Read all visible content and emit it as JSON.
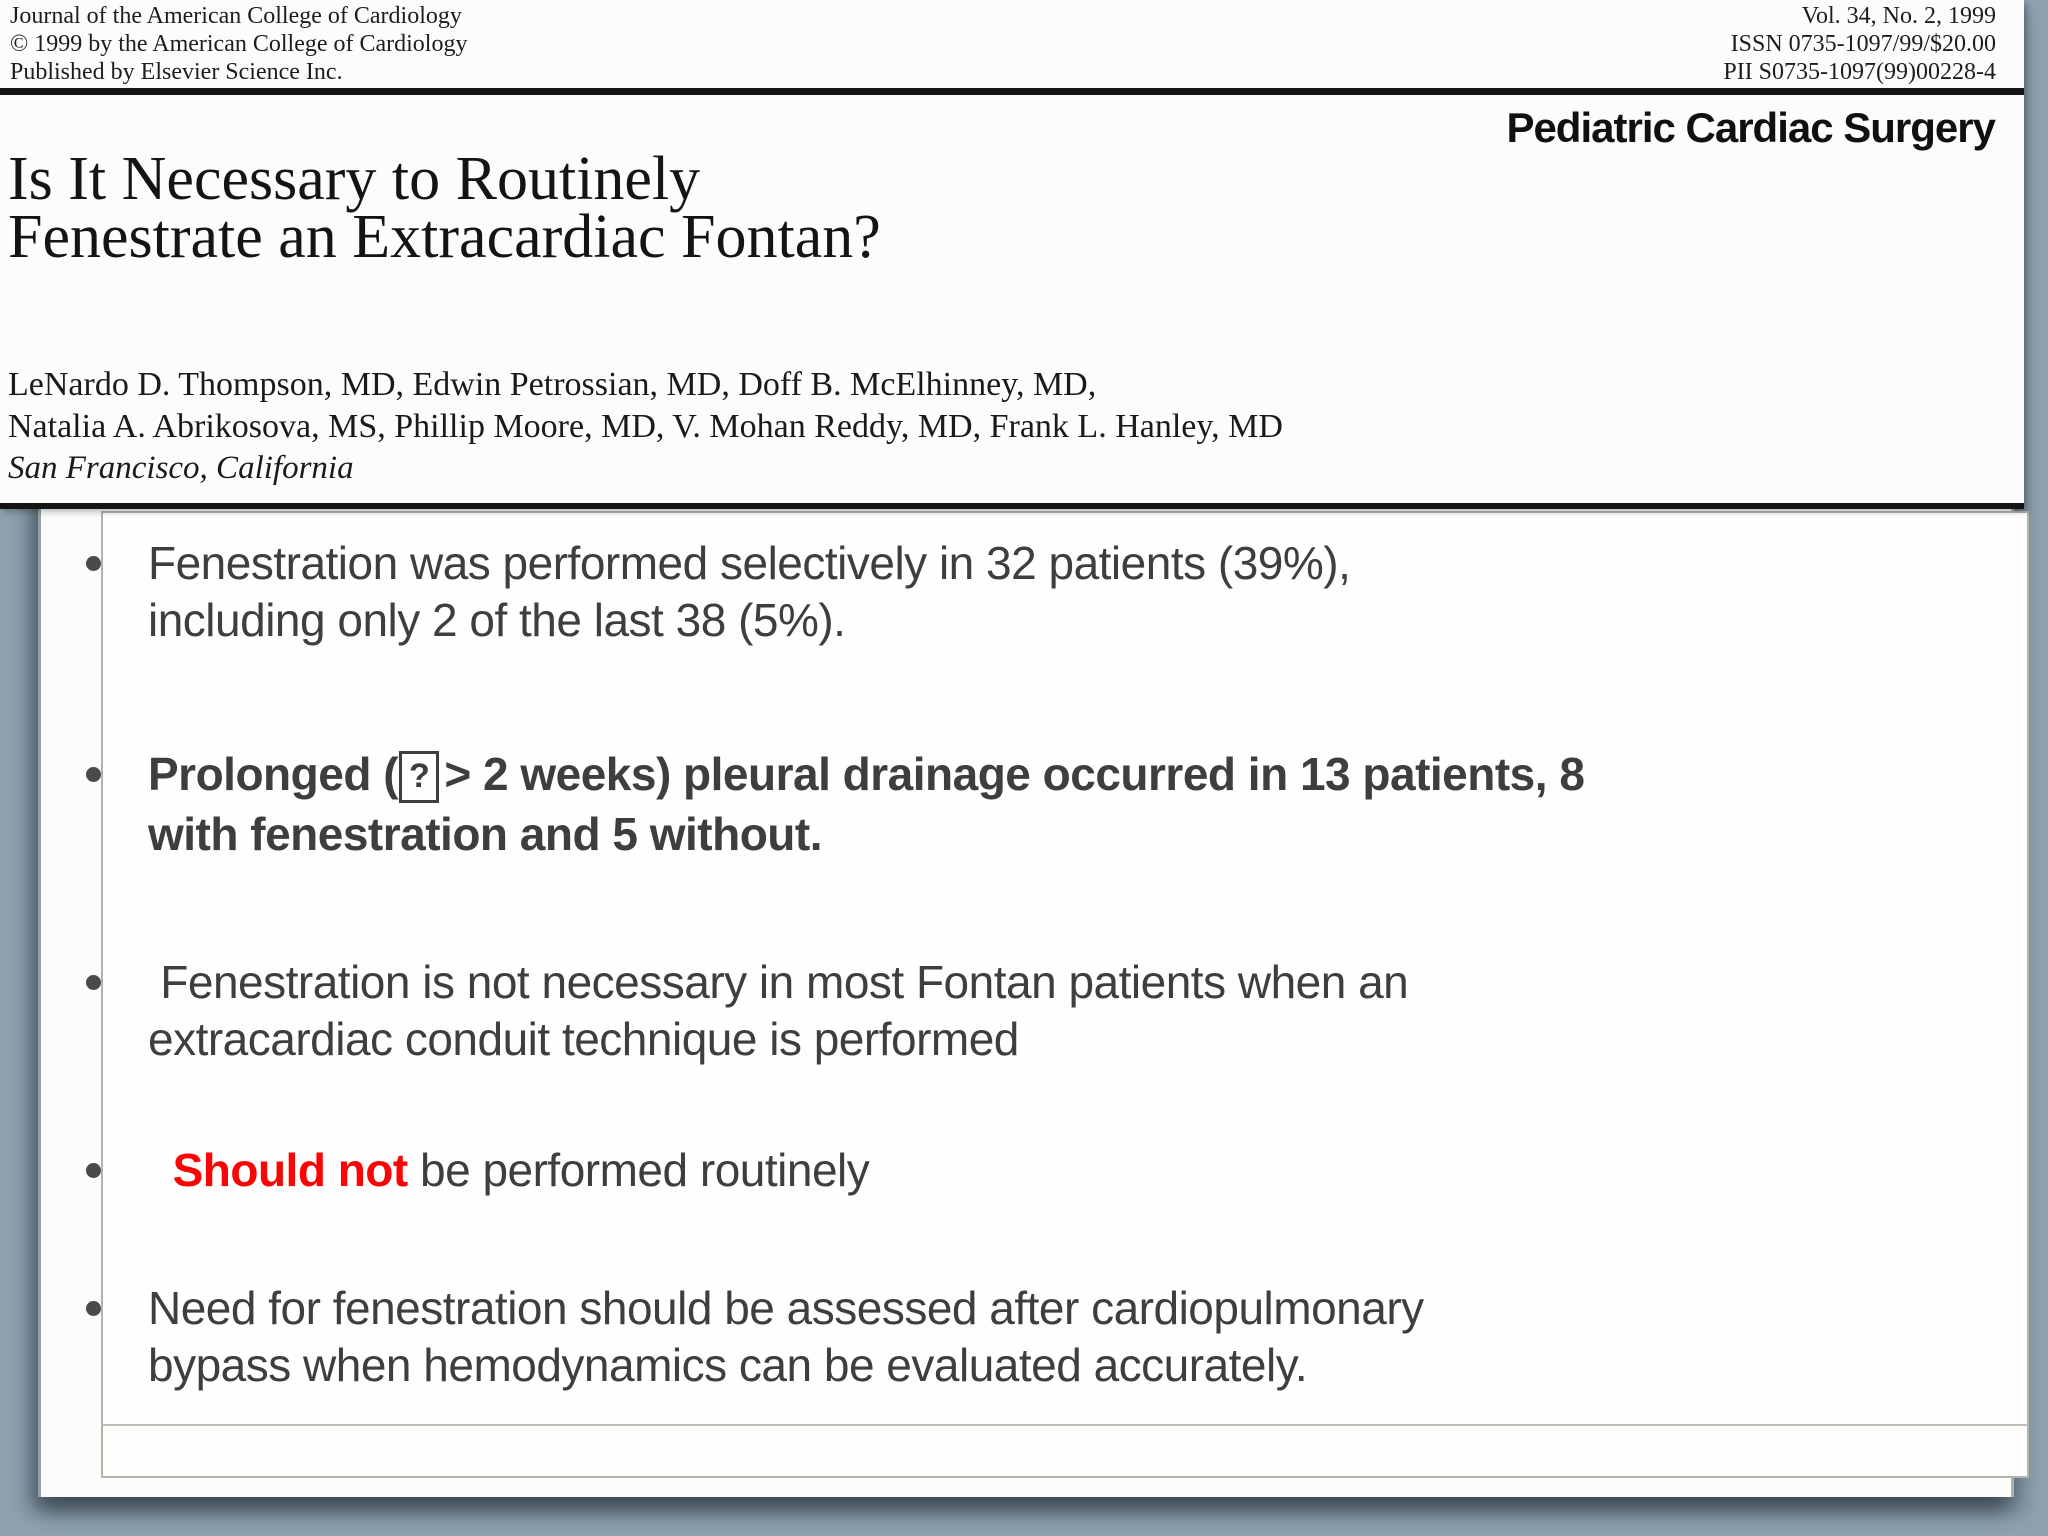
{
  "background_color": "#8da2ae",
  "paper_clip": {
    "publisher_lines": [
      "Journal of the American College of Cardiology",
      "© 1999 by the American College of Cardiology",
      "Published by Elsevier Science Inc."
    ],
    "issue_lines": [
      "Vol. 34, No. 2, 1999",
      "ISSN 0735-1097/99/$20.00",
      "PII S0735-1097(99)00228-4"
    ],
    "section_label": "Pediatric Cardiac Surgery",
    "title_line1": "Is It Necessary to Routinely",
    "title_line2": "Fenestrate an Extracardiac Fontan?",
    "authors_line1": "LeNardo D. Thompson, MD, Edwin Petrossian, MD, Doff B. McElhinney, MD,",
    "authors_line2": "Natalia A. Abrikosova, MS, Phillip Moore, MD, V. Mohan Reddy, MD, Frank L. Hanley, MD",
    "location": "San Francisco, California"
  },
  "slide": {
    "text_color": "#3e3e3e",
    "accent_red": "#fa0505",
    "bullets": [
      {
        "segments": [
          {
            "text": "Fenestration was performed selectively in 32 patients (39%),\nincluding only 2 of the last 38 (5%).",
            "style": "normal"
          }
        ]
      },
      {
        "segments": [
          {
            "text": "Prolonged (",
            "style": "bold"
          },
          {
            "text": "?",
            "style": "boxed-glyph"
          },
          {
            "text": "> 2 weeks) pleural drainage occurred in 13 patients, 8\nwith fenestration and 5 without.",
            "style": "bold"
          }
        ]
      },
      {
        "segments": [
          {
            "text": " Fenestration is not necessary in most Fontan patients when an\nextracardiac conduit technique is performed",
            "style": "normal"
          }
        ]
      },
      {
        "segments": [
          {
            "text": "  ",
            "style": "normal"
          },
          {
            "text": "Should not",
            "style": "red-bold"
          },
          {
            "text": " be performed routinely",
            "style": "normal"
          }
        ]
      },
      {
        "segments": [
          {
            "text": "Need for fenestration should be assessed after cardiopulmonary\nbypass when hemodynamics can be evaluated accurately.",
            "style": "normal"
          }
        ]
      }
    ]
  }
}
